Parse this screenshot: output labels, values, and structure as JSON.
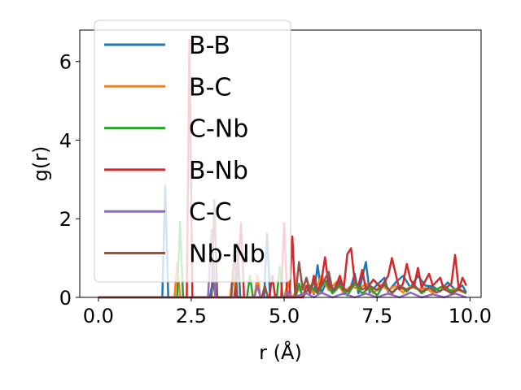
{
  "chart_data": {
    "type": "line",
    "title": "",
    "xlabel": "r (Å)",
    "ylabel": "g(r)",
    "xlim": [
      -0.5,
      10.3
    ],
    "ylim": [
      0,
      6.8
    ],
    "xticks": [
      0.0,
      2.5,
      5.0,
      7.5,
      10.0
    ],
    "xtick_labels": [
      "0.0",
      "2.5",
      "5.0",
      "7.5",
      "10.0"
    ],
    "yticks": [
      0,
      2,
      4,
      6
    ],
    "ytick_labels": [
      "0",
      "2",
      "4",
      "6"
    ],
    "grid": false,
    "legend_position": "top-left",
    "series": [
      {
        "name": "B-B",
        "color": "#1f77b4",
        "points": [
          [
            0,
            0
          ],
          [
            1.72,
            0
          ],
          [
            1.8,
            2.85
          ],
          [
            1.88,
            0
          ],
          [
            3.0,
            0
          ],
          [
            3.08,
            0.42
          ],
          [
            3.16,
            0
          ],
          [
            3.66,
            0
          ],
          [
            3.74,
            1.38
          ],
          [
            3.82,
            0
          ],
          [
            4.46,
            0
          ],
          [
            4.54,
            1.62
          ],
          [
            4.62,
            0
          ],
          [
            5.3,
            0
          ],
          [
            5.4,
            0.3
          ],
          [
            5.5,
            0
          ],
          [
            5.7,
            0.28
          ],
          [
            5.8,
            0.08
          ],
          [
            5.9,
            0.82
          ],
          [
            6.0,
            0.1
          ],
          [
            6.2,
            0.52
          ],
          [
            6.3,
            0.12
          ],
          [
            6.5,
            0.42
          ],
          [
            6.6,
            0.08
          ],
          [
            6.8,
            0.28
          ],
          [
            6.9,
            0.6
          ],
          [
            7.0,
            0.1
          ],
          [
            7.2,
            0.9
          ],
          [
            7.3,
            0.12
          ],
          [
            7.5,
            0.32
          ],
          [
            7.7,
            0.5
          ],
          [
            7.8,
            0.15
          ],
          [
            8.0,
            0.38
          ],
          [
            8.2,
            0.55
          ],
          [
            8.4,
            0.25
          ],
          [
            8.6,
            0.55
          ],
          [
            8.8,
            0.3
          ],
          [
            9.0,
            0.28
          ],
          [
            9.2,
            0.15
          ],
          [
            9.4,
            0.38
          ],
          [
            9.6,
            0.2
          ],
          [
            9.8,
            0.3
          ],
          [
            9.9,
            0.12
          ]
        ]
      },
      {
        "name": "B-C",
        "color": "#ff7f0e",
        "points": [
          [
            0,
            0
          ],
          [
            2.05,
            0
          ],
          [
            2.12,
            0.9
          ],
          [
            2.2,
            0
          ],
          [
            3.55,
            0
          ],
          [
            3.62,
            0.72
          ],
          [
            3.7,
            0
          ],
          [
            4.2,
            0
          ],
          [
            4.28,
            0.55
          ],
          [
            4.36,
            0
          ],
          [
            5.0,
            0
          ],
          [
            5.1,
            0.4
          ],
          [
            5.2,
            0
          ],
          [
            5.4,
            0.2
          ],
          [
            5.6,
            0.42
          ],
          [
            5.8,
            0.1
          ],
          [
            6.0,
            0.55
          ],
          [
            6.2,
            0.18
          ],
          [
            6.4,
            0.38
          ],
          [
            6.6,
            0.12
          ],
          [
            6.8,
            0.3
          ],
          [
            7.0,
            0.2
          ],
          [
            7.2,
            0.35
          ],
          [
            7.4,
            0.1
          ],
          [
            7.6,
            0.32
          ],
          [
            7.8,
            0.18
          ],
          [
            8.0,
            0.3
          ],
          [
            8.2,
            0.12
          ],
          [
            8.4,
            0.28
          ],
          [
            8.6,
            0.2
          ],
          [
            8.8,
            0.24
          ],
          [
            9.0,
            0.12
          ],
          [
            9.2,
            0.26
          ],
          [
            9.4,
            0.16
          ],
          [
            9.6,
            0.22
          ],
          [
            9.8,
            0.14
          ],
          [
            9.9,
            0.1
          ]
        ]
      },
      {
        "name": "C-Nb",
        "color": "#2ca02c",
        "points": [
          [
            0,
            0
          ],
          [
            2.12,
            0
          ],
          [
            2.2,
            1.92
          ],
          [
            2.28,
            0
          ],
          [
            4.0,
            0
          ],
          [
            4.08,
            0.55
          ],
          [
            4.16,
            0
          ],
          [
            4.8,
            0
          ],
          [
            4.88,
            0.78
          ],
          [
            4.96,
            0
          ],
          [
            5.3,
            0
          ],
          [
            5.4,
            0.35
          ],
          [
            5.5,
            0
          ],
          [
            5.7,
            0.3
          ],
          [
            5.9,
            0.1
          ],
          [
            6.1,
            0.42
          ],
          [
            6.3,
            0.1
          ],
          [
            6.5,
            0.3
          ],
          [
            6.7,
            0.05
          ],
          [
            6.9,
            0.35
          ],
          [
            7.1,
            0.1
          ],
          [
            7.3,
            0.25
          ],
          [
            7.5,
            0.05
          ],
          [
            7.7,
            0.35
          ],
          [
            7.9,
            0.1
          ],
          [
            8.1,
            0.28
          ],
          [
            8.3,
            0.15
          ],
          [
            8.5,
            0.32
          ],
          [
            8.7,
            0.1
          ],
          [
            8.9,
            0.25
          ],
          [
            9.1,
            0.2
          ],
          [
            9.3,
            0.3
          ],
          [
            9.5,
            0.15
          ],
          [
            9.7,
            0.22
          ],
          [
            9.9,
            0.1
          ]
        ]
      },
      {
        "name": "B-Nb",
        "color": "#d62728",
        "points": [
          [
            0,
            0
          ],
          [
            2.38,
            0
          ],
          [
            2.45,
            6.55
          ],
          [
            2.53,
            0
          ],
          [
            3.68,
            0
          ],
          [
            3.76,
            0.8
          ],
          [
            3.84,
            1.88
          ],
          [
            3.92,
            0
          ],
          [
            4.6,
            0
          ],
          [
            4.68,
            0.55
          ],
          [
            4.76,
            0
          ],
          [
            4.92,
            0
          ],
          [
            5.0,
            1.9
          ],
          [
            5.08,
            0
          ],
          [
            5.14,
            0
          ],
          [
            5.22,
            1.55
          ],
          [
            5.3,
            0
          ],
          [
            5.5,
            0
          ],
          [
            5.6,
            0.3
          ],
          [
            5.7,
            0.1
          ],
          [
            5.8,
            0.55
          ],
          [
            5.9,
            0.15
          ],
          [
            6.0,
            0.4
          ],
          [
            6.1,
            1.02
          ],
          [
            6.2,
            0.3
          ],
          [
            6.35,
            0.2
          ],
          [
            6.5,
            0.55
          ],
          [
            6.6,
            0.2
          ],
          [
            6.7,
            1.1
          ],
          [
            6.8,
            1.25
          ],
          [
            6.9,
            0.4
          ],
          [
            7.0,
            0.3
          ],
          [
            7.1,
            0.7
          ],
          [
            7.2,
            0.2
          ],
          [
            7.4,
            0.45
          ],
          [
            7.6,
            0.25
          ],
          [
            7.8,
            0.55
          ],
          [
            7.9,
            1.0
          ],
          [
            8.0,
            0.6
          ],
          [
            8.1,
            0.2
          ],
          [
            8.2,
            0.35
          ],
          [
            8.3,
            0.85
          ],
          [
            8.4,
            0.45
          ],
          [
            8.5,
            0.3
          ],
          [
            8.6,
            0.75
          ],
          [
            8.7,
            0.25
          ],
          [
            8.9,
            0.6
          ],
          [
            9.0,
            0.3
          ],
          [
            9.2,
            0.5
          ],
          [
            9.3,
            0.2
          ],
          [
            9.5,
            0.35
          ],
          [
            9.6,
            1.08
          ],
          [
            9.7,
            0.2
          ],
          [
            9.8,
            0.5
          ],
          [
            9.9,
            0.3
          ]
        ]
      },
      {
        "name": "C-C",
        "color": "#9467bd",
        "points": [
          [
            0,
            0
          ],
          [
            2.95,
            0
          ],
          [
            3.05,
            1.72
          ],
          [
            3.15,
            0
          ],
          [
            4.2,
            0
          ],
          [
            4.28,
            0.3
          ],
          [
            4.36,
            0
          ],
          [
            5.0,
            0
          ],
          [
            5.1,
            0.15
          ],
          [
            5.2,
            0
          ],
          [
            5.6,
            0.1
          ],
          [
            5.8,
            0
          ],
          [
            6.0,
            0.12
          ],
          [
            6.3,
            0
          ],
          [
            6.6,
            0.1
          ],
          [
            6.9,
            0
          ],
          [
            7.2,
            0.1
          ],
          [
            7.5,
            0
          ],
          [
            7.8,
            0.1
          ],
          [
            8.1,
            0
          ],
          [
            8.4,
            0.12
          ],
          [
            8.7,
            0
          ],
          [
            9.0,
            0.08
          ],
          [
            9.3,
            0
          ],
          [
            9.6,
            0.1
          ],
          [
            9.9,
            0
          ]
        ]
      },
      {
        "name": "Nb-Nb",
        "color": "#8c564b",
        "points": [
          [
            0,
            0
          ],
          [
            3.05,
            0
          ],
          [
            3.12,
            2.48
          ],
          [
            3.2,
            0
          ],
          [
            3.58,
            0
          ],
          [
            3.66,
            1.2
          ],
          [
            3.74,
            0
          ],
          [
            4.4,
            0
          ],
          [
            4.48,
            0.3
          ],
          [
            4.56,
            0
          ],
          [
            5.3,
            0
          ],
          [
            5.4,
            0.9
          ],
          [
            5.5,
            0.2
          ],
          [
            5.6,
            0.5
          ],
          [
            5.7,
            0.15
          ],
          [
            5.8,
            0.4
          ],
          [
            5.9,
            0.12
          ],
          [
            6.0,
            0.3
          ],
          [
            6.2,
            0.65
          ],
          [
            6.3,
            0.2
          ],
          [
            6.5,
            0.35
          ],
          [
            6.7,
            0.15
          ],
          [
            6.9,
            0.4
          ],
          [
            7.1,
            0.2
          ],
          [
            7.3,
            0.3
          ],
          [
            7.5,
            0.18
          ],
          [
            7.7,
            0.32
          ],
          [
            7.9,
            0.12
          ],
          [
            8.1,
            0.3
          ],
          [
            8.3,
            0.2
          ],
          [
            8.5,
            0.28
          ],
          [
            8.7,
            0.15
          ],
          [
            8.9,
            0.25
          ],
          [
            9.1,
            0.12
          ],
          [
            9.3,
            0.22
          ],
          [
            9.5,
            0.1
          ],
          [
            9.7,
            0.2
          ],
          [
            9.9,
            0.12
          ]
        ]
      }
    ]
  }
}
